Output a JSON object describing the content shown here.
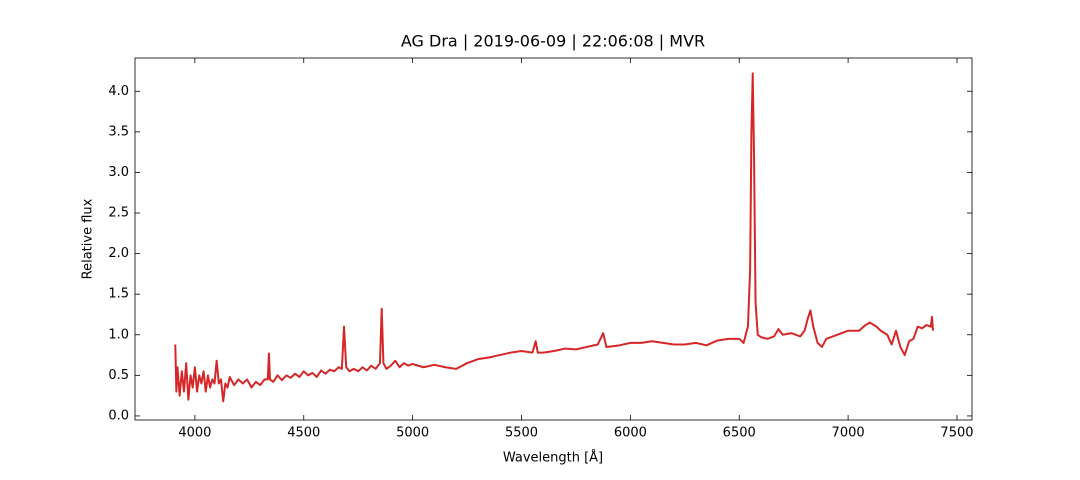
{
  "chart_data": {
    "type": "line",
    "title": "AG Dra | 2019-06-09 | 22:06:08 | MVR",
    "x_label": "Wavelength [Å]",
    "y_label": "Relative flux",
    "color": "#d62728",
    "xlim": [
      3725,
      7569
    ],
    "ylim": [
      -0.05,
      4.41
    ],
    "xticks": [
      4000,
      4500,
      5000,
      5500,
      6000,
      6500,
      7000,
      7500
    ],
    "yticks": [
      {
        "value": 0,
        "label": "0.0"
      },
      0.5,
      {
        "value": 1,
        "label": "1.0"
      },
      1.5,
      {
        "value": 2,
        "label": "2.0"
      },
      2.5,
      {
        "value": 3,
        "label": "3.0"
      },
      3.5,
      {
        "value": 4,
        "label": "4.0"
      }
    ],
    "x": [
      3910,
      3915,
      3920,
      3930,
      3940,
      3950,
      3960,
      3970,
      3980,
      3990,
      4000,
      4010,
      4020,
      4030,
      4040,
      4050,
      4060,
      4070,
      4080,
      4090,
      4100,
      4110,
      4120,
      4130,
      4140,
      4150,
      4160,
      4180,
      4200,
      4220,
      4240,
      4260,
      4280,
      4300,
      4320,
      4335,
      4340,
      4345,
      4360,
      4380,
      4400,
      4420,
      4440,
      4460,
      4480,
      4500,
      4520,
      4540,
      4560,
      4580,
      4600,
      4620,
      4640,
      4660,
      4675,
      4685,
      4695,
      4710,
      4730,
      4750,
      4770,
      4790,
      4810,
      4830,
      4850,
      4858,
      4866,
      4880,
      4900,
      4920,
      4940,
      4960,
      4980,
      5000,
      5050,
      5100,
      5150,
      5200,
      5250,
      5300,
      5350,
      5400,
      5450,
      5500,
      5550,
      5565,
      5575,
      5600,
      5650,
      5700,
      5750,
      5800,
      5850,
      5875,
      5890,
      5950,
      6000,
      6050,
      6100,
      6150,
      6200,
      6250,
      6300,
      6350,
      6400,
      6450,
      6500,
      6520,
      6540,
      6550,
      6556,
      6562,
      6568,
      6575,
      6585,
      6600,
      6630,
      6660,
      6680,
      6700,
      6740,
      6780,
      6800,
      6815,
      6827,
      6840,
      6860,
      6880,
      6900,
      6950,
      7000,
      7050,
      7080,
      7100,
      7130,
      7150,
      7180,
      7200,
      7220,
      7240,
      7260,
      7280,
      7300,
      7320,
      7340,
      7360,
      7380,
      7385,
      7390
    ],
    "values": [
      0.88,
      0.3,
      0.6,
      0.25,
      0.55,
      0.3,
      0.65,
      0.2,
      0.5,
      0.35,
      0.6,
      0.3,
      0.5,
      0.4,
      0.55,
      0.3,
      0.5,
      0.35,
      0.45,
      0.4,
      0.68,
      0.4,
      0.45,
      0.18,
      0.4,
      0.35,
      0.48,
      0.38,
      0.45,
      0.4,
      0.45,
      0.35,
      0.42,
      0.38,
      0.45,
      0.45,
      0.77,
      0.45,
      0.42,
      0.5,
      0.44,
      0.5,
      0.47,
      0.52,
      0.48,
      0.55,
      0.5,
      0.53,
      0.48,
      0.56,
      0.52,
      0.57,
      0.55,
      0.6,
      0.58,
      1.1,
      0.6,
      0.55,
      0.58,
      0.55,
      0.6,
      0.56,
      0.62,
      0.58,
      0.65,
      1.32,
      0.65,
      0.58,
      0.62,
      0.68,
      0.6,
      0.65,
      0.62,
      0.64,
      0.6,
      0.63,
      0.6,
      0.58,
      0.65,
      0.7,
      0.72,
      0.75,
      0.78,
      0.8,
      0.78,
      0.92,
      0.78,
      0.78,
      0.8,
      0.83,
      0.82,
      0.85,
      0.88,
      1.02,
      0.85,
      0.87,
      0.9,
      0.9,
      0.92,
      0.9,
      0.88,
      0.88,
      0.9,
      0.87,
      0.93,
      0.95,
      0.95,
      0.9,
      1.1,
      1.8,
      3.5,
      4.22,
      3.2,
      1.4,
      1.0,
      0.97,
      0.95,
      0.98,
      1.07,
      1.0,
      1.02,
      0.98,
      1.05,
      1.2,
      1.3,
      1.1,
      0.9,
      0.85,
      0.95,
      1.0,
      1.05,
      1.05,
      1.12,
      1.15,
      1.1,
      1.05,
      1.0,
      0.88,
      1.05,
      0.85,
      0.75,
      0.92,
      0.95,
      1.1,
      1.08,
      1.12,
      1.1,
      1.22,
      1.05
    ]
  }
}
